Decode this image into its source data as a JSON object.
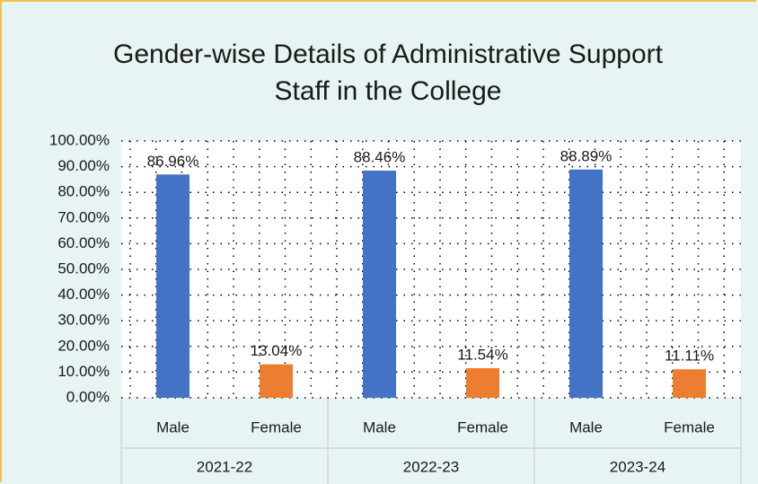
{
  "chart_data": {
    "type": "bar",
    "title": "Gender-wise Details of Administrative Support Staff in the College",
    "categories": [
      "Male",
      "Female",
      "Male",
      "Female",
      "Male",
      "Female"
    ],
    "groups": [
      "2021-22",
      "2022-23",
      "2023-24"
    ],
    "values": [
      86.96,
      13.04,
      88.46,
      11.54,
      88.89,
      11.11
    ],
    "value_labels": [
      "86.96%",
      "13.04%",
      "88.46%",
      "11.54%",
      "88.89%",
      "11.11%"
    ],
    "colors": [
      "#4472c4",
      "#ed7d31",
      "#4472c4",
      "#ed7d31",
      "#4472c4",
      "#ed7d31"
    ],
    "ylim": [
      0,
      100
    ],
    "yticks": [
      {
        "value": 0,
        "label": "0.00%"
      },
      {
        "value": 10,
        "label": "10.00%"
      },
      {
        "value": 20,
        "label": "20.00%"
      },
      {
        "value": 30,
        "label": "30.00%"
      },
      {
        "value": 40,
        "label": "40.00%"
      },
      {
        "value": 50,
        "label": "50.00%"
      },
      {
        "value": 60,
        "label": "60.00%"
      },
      {
        "value": 70,
        "label": "70.00%"
      },
      {
        "value": 80,
        "label": "80.00%"
      },
      {
        "value": 90,
        "label": "90.00%"
      },
      {
        "value": 100,
        "label": "100.00%"
      }
    ],
    "grid": true
  }
}
